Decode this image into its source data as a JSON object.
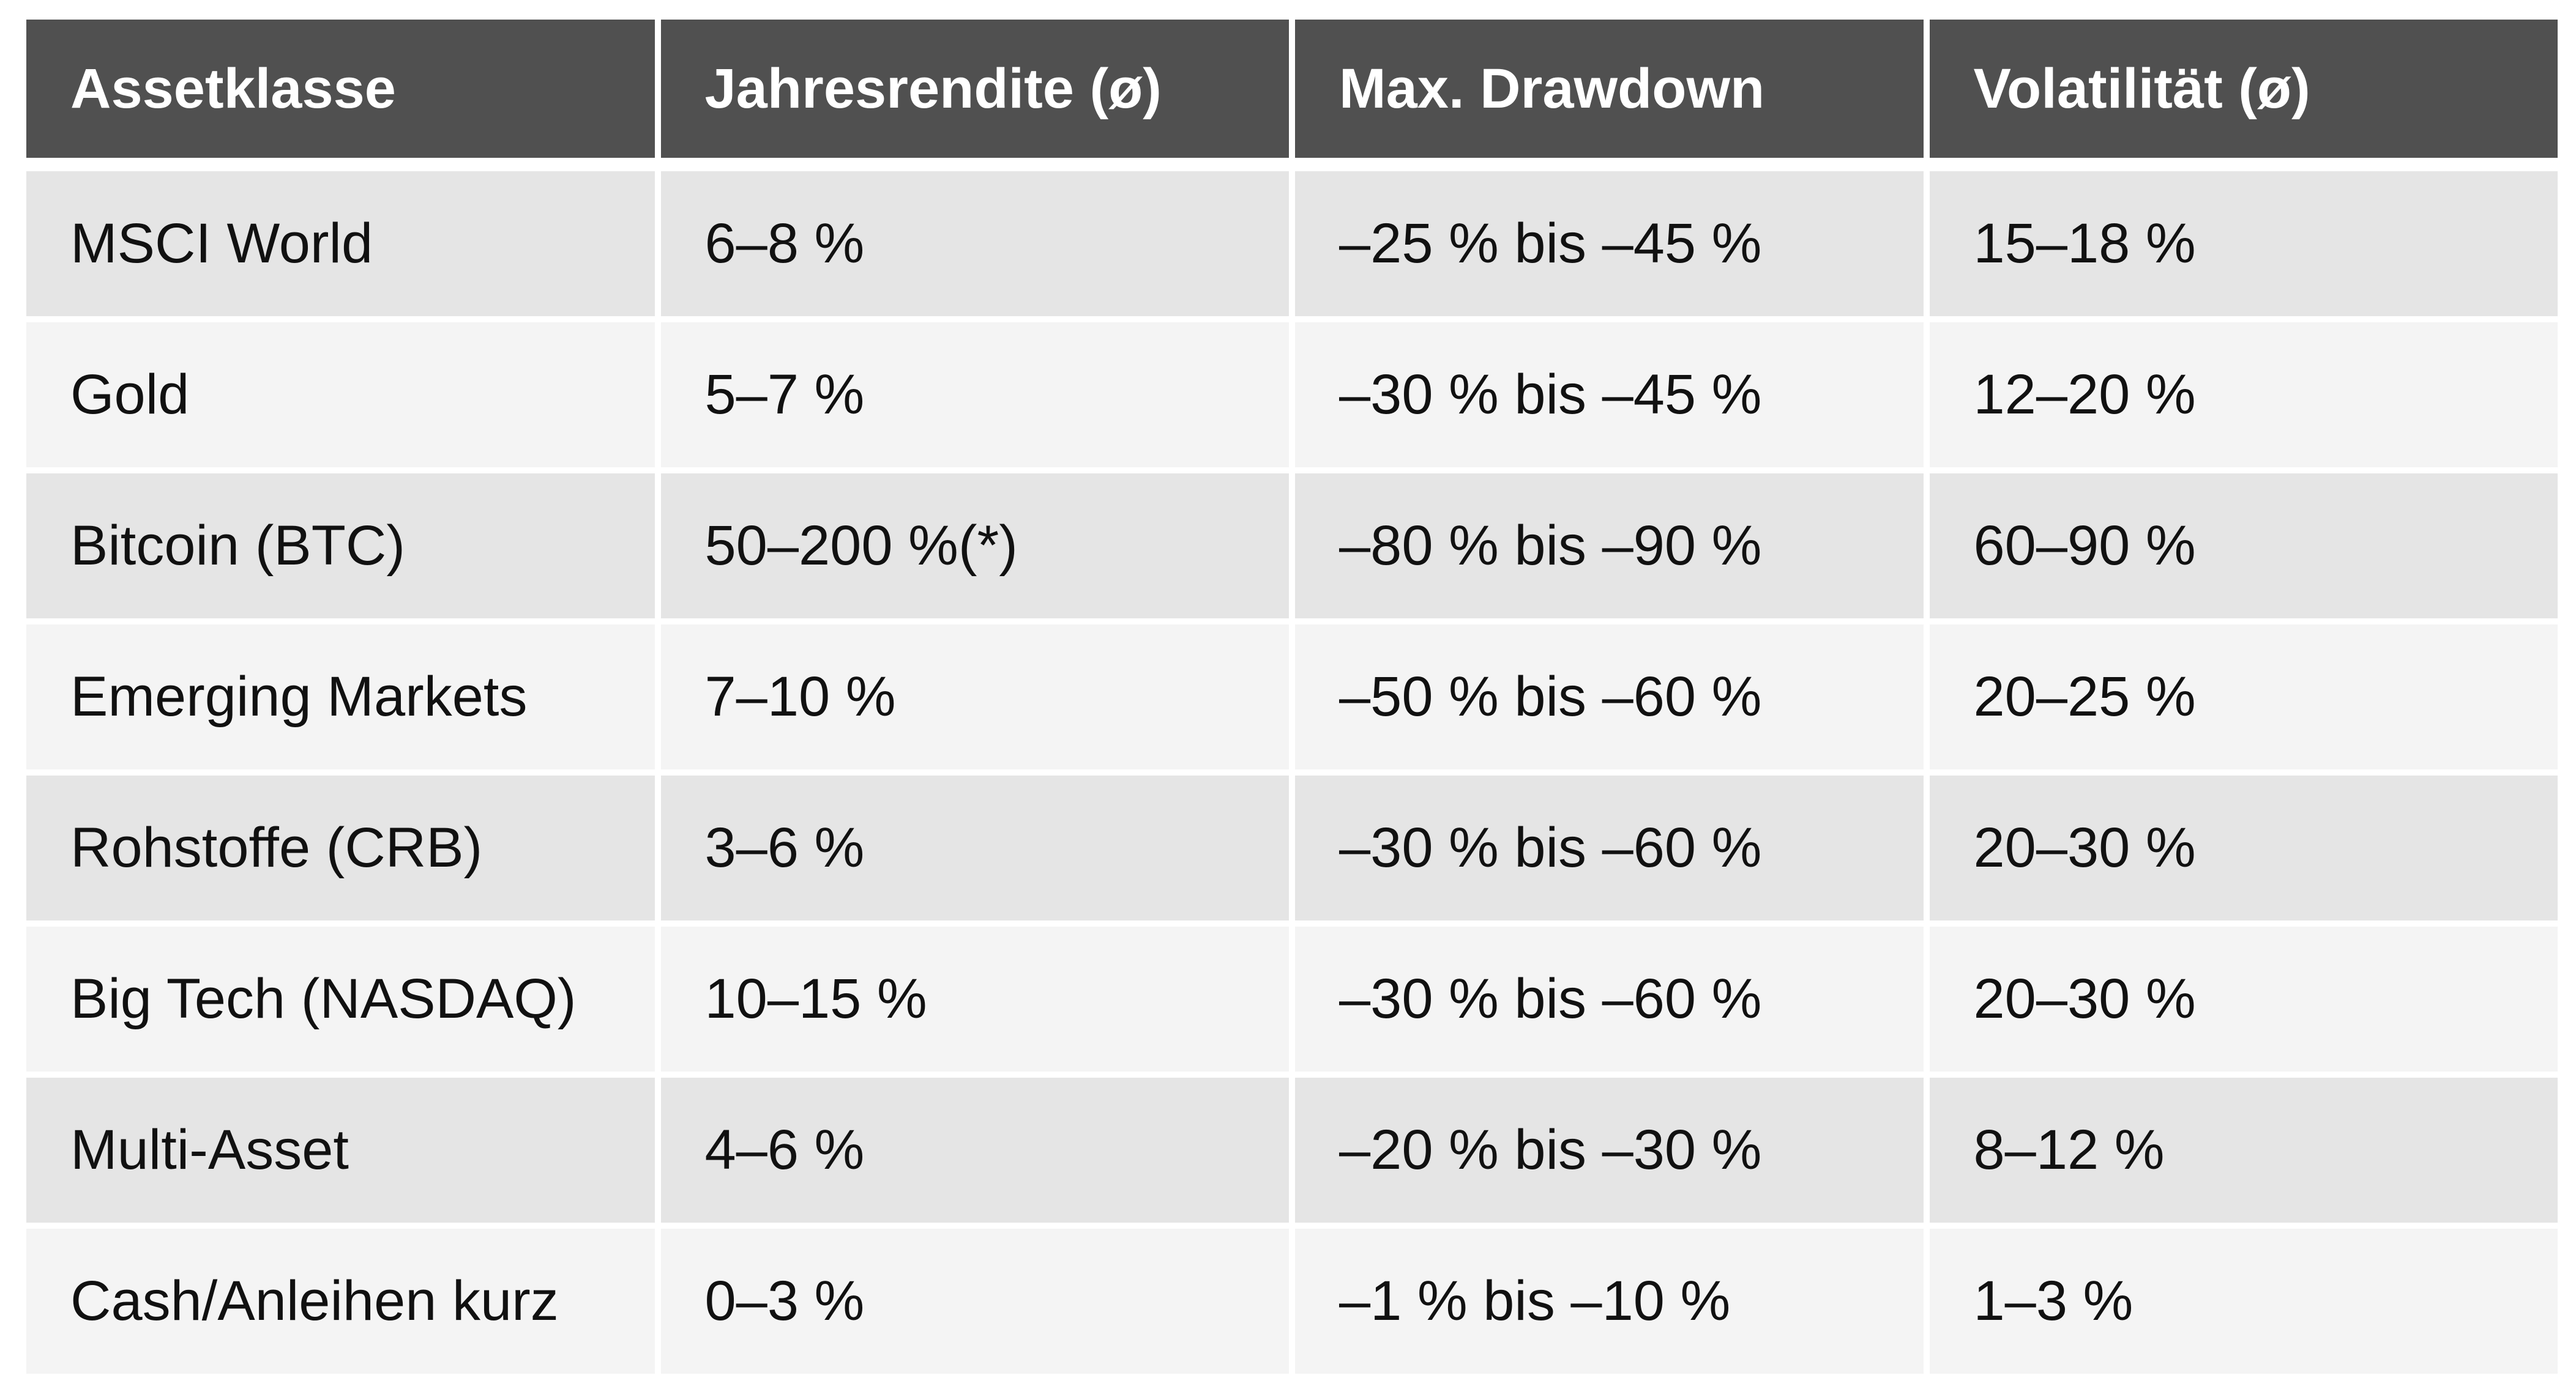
{
  "table": {
    "header": [
      "Assetklasse",
      "Jahresrendite (ø)",
      "Max. Drawdown",
      "Volatilität (ø)"
    ],
    "rows": [
      [
        "MSCI World",
        "6–8 %",
        "–25 % bis –45 %",
        "15–18 %"
      ],
      [
        "Gold",
        "5–7 %",
        "–30 % bis –45 %",
        "12–20 %"
      ],
      [
        "Bitcoin (BTC)",
        "50–200 %(*)",
        "–80 % bis –90 %",
        "60–90 %"
      ],
      [
        "Emerging Markets",
        "7–10 %",
        "–50 % bis –60 %",
        "20–25 %"
      ],
      [
        "Rohstoffe (CRB)",
        "3–6 %",
        "–30 % bis –60 %",
        "20–30 %"
      ],
      [
        "Big Tech (NASDAQ)",
        "10–15 %",
        "–30 % bis –60 %",
        "20–30 %"
      ],
      [
        "Multi-Asset",
        "4–6 %",
        "–20 % bis –30 %",
        "8–12 %"
      ],
      [
        "Cash/Anleihen kurz",
        "0–3 %",
        "–1 % bis –10 %",
        "1–3 %"
      ]
    ]
  }
}
